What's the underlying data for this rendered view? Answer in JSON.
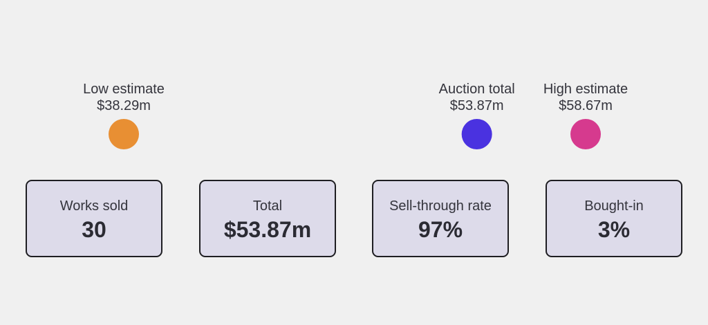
{
  "chart_data": {
    "type": "range",
    "axis_range": [
      38.29,
      58.67
    ],
    "markers": [
      {
        "label": "Low estimate",
        "value": 38.29,
        "display": "$38.29m",
        "color": "#e88f33"
      },
      {
        "label": "Auction total",
        "value": 53.87,
        "display": "$53.87m",
        "color": "#4a32e0"
      },
      {
        "label": "High estimate",
        "value": 58.67,
        "display": "$58.67m",
        "color": "#d63a8e"
      }
    ],
    "line_gradient": [
      "#e88f33",
      "#4a32e0",
      "#d63a8e"
    ]
  },
  "stats": [
    {
      "label": "Works sold",
      "value": "30"
    },
    {
      "label": "Total",
      "value": "$53.87m"
    },
    {
      "label": "Sell-through rate",
      "value": "97%"
    },
    {
      "label": "Bought-in",
      "value": "3%"
    }
  ]
}
